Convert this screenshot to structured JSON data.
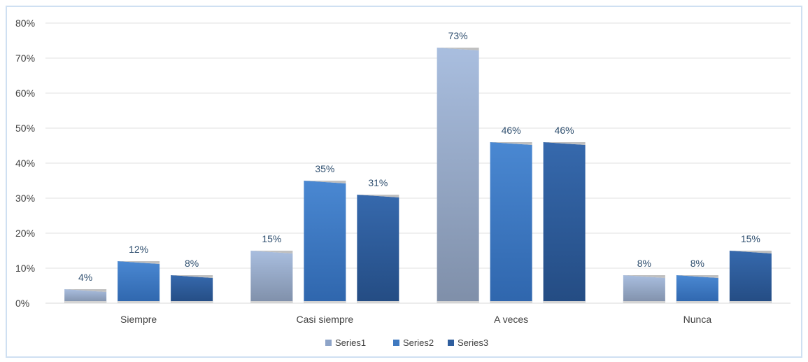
{
  "chart_data": {
    "type": "bar",
    "categories": [
      "Siempre",
      "Casi siempre",
      "A veces",
      "Nunca"
    ],
    "series": [
      {
        "name": "Series1",
        "values": [
          4,
          15,
          73,
          8
        ],
        "labels": [
          "4%",
          "15%",
          "73%",
          "8%"
        ],
        "color": "#8ea4c8"
      },
      {
        "name": "Series2",
        "values": [
          12,
          35,
          46,
          8
        ],
        "labels": [
          "12%",
          "35%",
          "46%",
          "8%"
        ],
        "color": "#3f79c0"
      },
      {
        "name": "Series3",
        "values": [
          8,
          31,
          46,
          15
        ],
        "labels": [
          "8%",
          "31%",
          "46%",
          "15%"
        ],
        "color": "#2f5e9e"
      }
    ],
    "yticks": [
      "0%",
      "10%",
      "20%",
      "30%",
      "40%",
      "50%",
      "60%",
      "70%",
      "80%"
    ],
    "ylim": [
      0,
      80
    ],
    "grid": true,
    "legend": "bottom-center"
  }
}
